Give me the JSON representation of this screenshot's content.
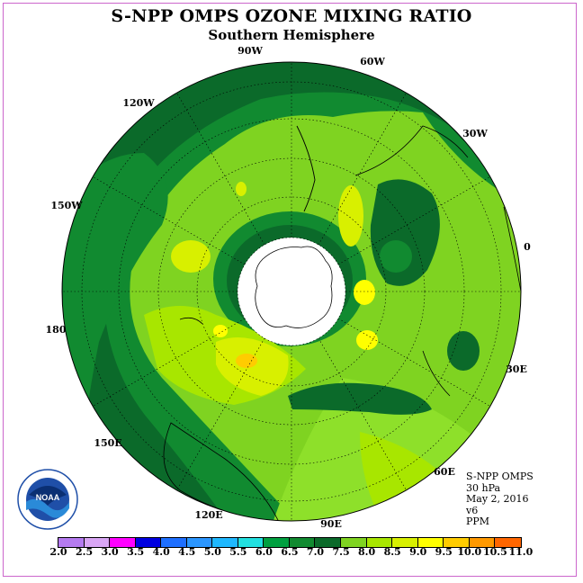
{
  "title": "S-NPP OMPS OZONE MIXING RATIO",
  "subtitle": "Southern Hemisphere",
  "longitude_labels": [
    "90W",
    "60W",
    "30W",
    "0",
    "30E",
    "60E",
    "90E",
    "120E",
    "150E",
    "180",
    "150W",
    "120W"
  ],
  "info": {
    "instrument": "S-NPP OMPS",
    "pressure": "30 hPa",
    "date": "May 2, 2016",
    "version": "v6",
    "units": "PPM"
  },
  "logo_text": "NOAA",
  "colorbar": {
    "ticks": [
      "2.0",
      "2.5",
      "3.0",
      "3.5",
      "4.0",
      "4.5",
      "5.0",
      "5.5",
      "6.0",
      "6.5",
      "7.0",
      "7.5",
      "8.0",
      "8.5",
      "9.0",
      "9.5",
      "10.0",
      "10.5",
      "11.0"
    ],
    "colors": [
      "#b57bf0",
      "#d9a6f5",
      "#ff00ff",
      "#0000e0",
      "#1e6fff",
      "#2b96ff",
      "#1fb8ff",
      "#22e0e0",
      "#00a040",
      "#118a30",
      "#0b6a2a",
      "#7fd321",
      "#a8e600",
      "#d8f000",
      "#ffff00",
      "#ffcc00",
      "#ff9900",
      "#ff6600",
      "#ff1100",
      "#cc0000",
      "#8b4513"
    ]
  },
  "chart_data": {
    "type": "polar-map",
    "hemisphere": "Southern Hemisphere",
    "variable": "ozone mixing ratio",
    "units": "PPM",
    "pressure": "30 hPa",
    "date": "May 2, 2016",
    "value_range": [
      2.0,
      11.0
    ],
    "interval": 0.5,
    "dominant_range": [
      6.5,
      9.0
    ],
    "local_max_region": "near 150E, ~9.0-9.5 ppm",
    "polar_night_region": "no data"
  }
}
